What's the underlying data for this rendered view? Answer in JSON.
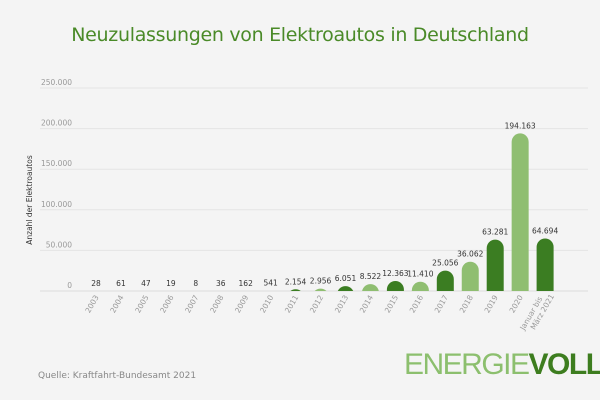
{
  "chart_data": {
    "type": "bar",
    "title": "Neuzulassungen von Elektroautos in Deutschland",
    "ylabel": "Anzahl der Elektroautos",
    "xlabel": "",
    "ylim": [
      0,
      250000
    ],
    "yticks": [
      0,
      50000,
      100000,
      150000,
      200000,
      250000
    ],
    "ytick_labels": [
      "0",
      "50.000",
      "100.000",
      "150.000",
      "200.000",
      "250.000"
    ],
    "grid": true,
    "categories": [
      "2003",
      "2004",
      "2005",
      "2006",
      "2007",
      "2008",
      "2009",
      "2010",
      "2011",
      "2012",
      "2013",
      "2014",
      "2015",
      "2016",
      "2017",
      "2018",
      "2019",
      "2020",
      "Januar bis|März 2021"
    ],
    "values": [
      28,
      61,
      47,
      19,
      8,
      36,
      162,
      541,
      2154,
      2956,
      6051,
      8522,
      12363,
      11410,
      25056,
      36062,
      63281,
      194163,
      64694
    ],
    "data_labels": [
      "28",
      "61",
      "47",
      "19",
      "8",
      "36",
      "162",
      "541",
      "2.154",
      "2.956",
      "6.051",
      "8.522",
      "12.363",
      "11.410",
      "25.056",
      "36.062",
      "63.281",
      "194.163",
      "64.694"
    ],
    "colors": {
      "dark": "#3b7d22",
      "light": "#8fbe71"
    }
  },
  "source": "Quelle: Kraftfahrt-Bundesamt 2021",
  "logo": {
    "part1": "ENERGIE",
    "part2": "VOLL"
  }
}
